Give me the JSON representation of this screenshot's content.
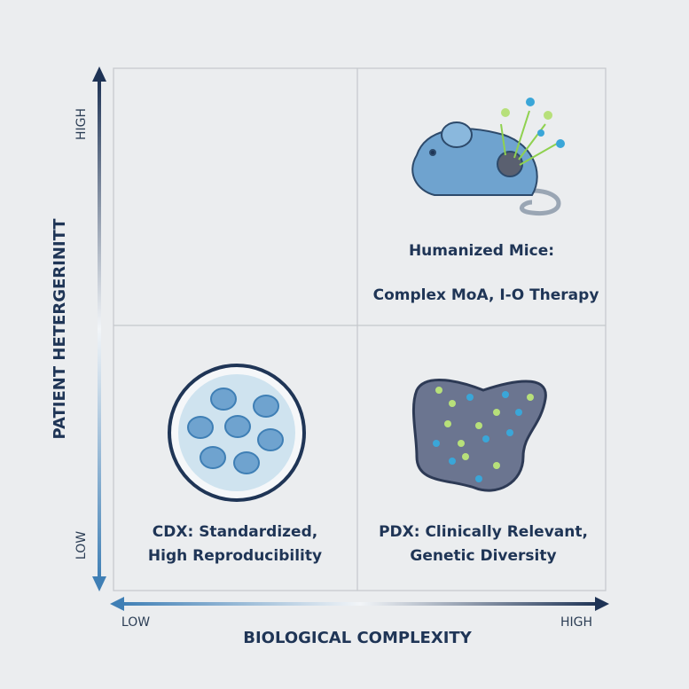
{
  "y_axis": {
    "label": "PATIENT HETERGERINITT",
    "high": "HIGH",
    "low": "LOW"
  },
  "x_axis": {
    "label": "BIOLOGICAL COMPLEXITY",
    "low": "LOW",
    "high": "HIGH"
  },
  "quadrants": {
    "top_right": {
      "lines": [
        "Humanized Mice:",
        "Complex MoA, I-O Therapy"
      ]
    },
    "bottom_left": {
      "lines": [
        "CDX: Standardized,",
        "High Reproducibility"
      ]
    },
    "bottom_right": {
      "lines": [
        "PDX: Clinically Relevant,",
        "Genetic Diversity"
      ]
    }
  }
}
